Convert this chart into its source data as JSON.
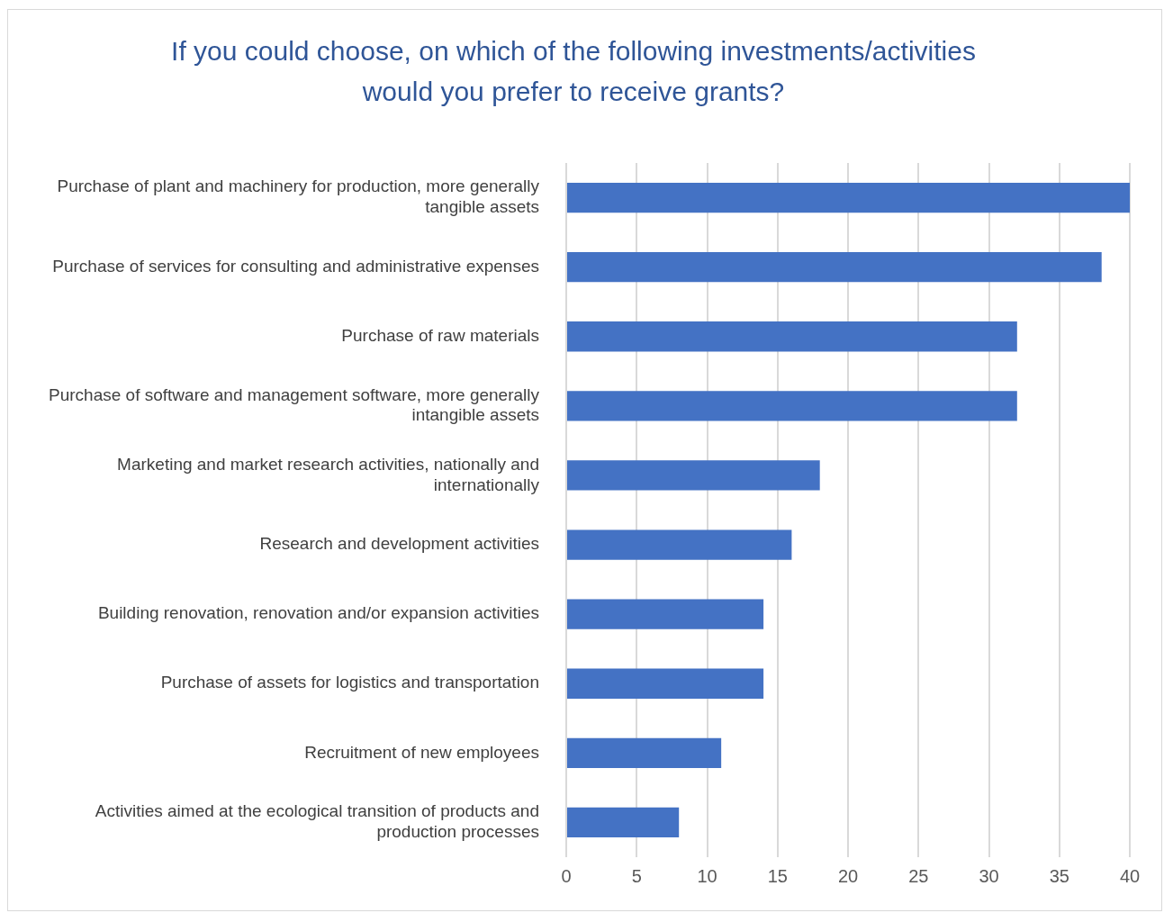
{
  "chart_data": {
    "type": "bar",
    "orientation": "horizontal",
    "title": "If you could choose, on which of the following investments/activities would you prefer to receive grants?",
    "categories": [
      "Purchase of plant and machinery for production, more generally tangible assets",
      "Purchase of services for consulting and administrative expenses",
      "Purchase of raw materials",
      "Purchase of software and management software, more generally intangible assets",
      "Marketing and market research activities, nationally and internationally",
      "Research and development activities",
      "Building renovation, renovation and/or expansion activities",
      "Purchase of assets for logistics and transportation",
      "Recruitment of new employees",
      "Activities aimed at the ecological transition of products and production processes"
    ],
    "values": [
      40,
      38,
      32,
      32,
      18,
      16,
      14,
      14,
      11,
      8
    ],
    "color": "#4472c4",
    "xlim": [
      0,
      40
    ],
    "xticks": [
      0,
      5,
      10,
      15,
      20,
      25,
      30,
      35,
      40
    ],
    "grid": "x",
    "legend": false
  }
}
